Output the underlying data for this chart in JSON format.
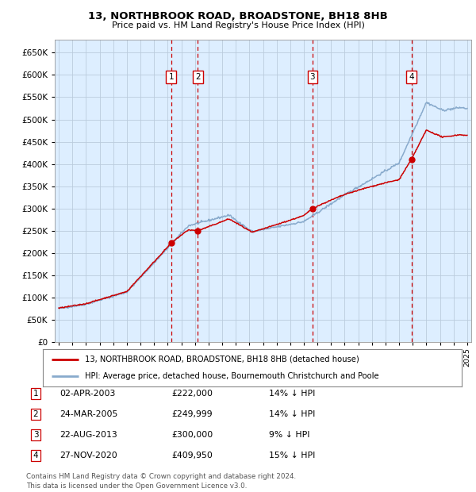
{
  "title": "13, NORTHBROOK ROAD, BROADSTONE, BH18 8HB",
  "subtitle": "Price paid vs. HM Land Registry's House Price Index (HPI)",
  "footer": "Contains HM Land Registry data © Crown copyright and database right 2024.\nThis data is licensed under the Open Government Licence v3.0.",
  "legend_line1": "13, NORTHBROOK ROAD, BROADSTONE, BH18 8HB (detached house)",
  "legend_line2": "HPI: Average price, detached house, Bournemouth Christchurch and Poole",
  "sale_color": "#cc0000",
  "hpi_color": "#88aacc",
  "background_color": "#ddeeff",
  "plot_bg": "#ffffff",
  "grid_color": "#bbccdd",
  "sale_events": [
    {
      "label": "1",
      "date_str": "02-APR-2003",
      "price": 222000,
      "pct": "14%",
      "x": 2003.25
    },
    {
      "label": "2",
      "date_str": "24-MAR-2005",
      "price": 249999,
      "pct": "14%",
      "x": 2005.22
    },
    {
      "label": "3",
      "date_str": "22-AUG-2013",
      "price": 300000,
      "pct": "9%",
      "x": 2013.64
    },
    {
      "label": "4",
      "date_str": "27-NOV-2020",
      "price": 409950,
      "pct": "15%",
      "x": 2020.9
    }
  ],
  "ylim": [
    0,
    680000
  ],
  "xlim": [
    1994.7,
    2025.3
  ],
  "yticks": [
    0,
    50000,
    100000,
    150000,
    200000,
    250000,
    300000,
    350000,
    400000,
    450000,
    500000,
    550000,
    600000,
    650000
  ],
  "xticks": [
    1995,
    1996,
    1997,
    1998,
    1999,
    2000,
    2001,
    2002,
    2003,
    2004,
    2005,
    2006,
    2007,
    2008,
    2009,
    2010,
    2011,
    2012,
    2013,
    2014,
    2015,
    2016,
    2017,
    2018,
    2019,
    2020,
    2021,
    2022,
    2023,
    2024,
    2025
  ]
}
